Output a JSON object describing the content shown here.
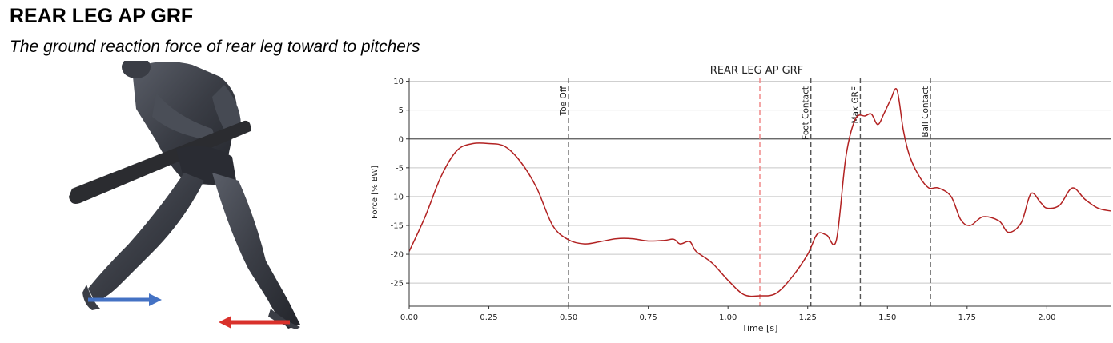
{
  "header": {
    "title": "REAR LEG AP GRF",
    "subtitle": "The ground reaction force of rear leg toward to pitchers"
  },
  "figure": {
    "description_icon": "batter-figure-icon",
    "arrows": [
      {
        "name": "rear-foot-arrow",
        "color": "#4472c4",
        "direction": "right"
      },
      {
        "name": "front-foot-arrow",
        "color": "#d9312b",
        "direction": "left"
      }
    ]
  },
  "chart_data": {
    "type": "line",
    "title": "REAR LEG AP GRF",
    "xlabel": "Time [s]",
    "ylabel": "Force [% BW]",
    "xlim": [
      0,
      2.2
    ],
    "ylim": [
      -29,
      10.5
    ],
    "xticks": [
      "0.00",
      "0.25",
      "0.50",
      "0.75",
      "1.00",
      "1.25",
      "1.50",
      "1.75",
      "2.00"
    ],
    "xtick_values": [
      0,
      0.25,
      0.5,
      0.75,
      1.0,
      1.25,
      1.5,
      1.75,
      2.0
    ],
    "yticks": [
      "10",
      "5",
      "0",
      "-5",
      "-10",
      "-15",
      "-20",
      "-25"
    ],
    "ytick_values": [
      10,
      5,
      0,
      -5,
      -10,
      -15,
      -20,
      -25
    ],
    "grid": "horizontal",
    "line_color": "#b22222",
    "events": [
      {
        "label": "Toe Off",
        "x": 0.5,
        "color": "#555555"
      },
      {
        "label": "",
        "x": 1.1,
        "color": "#f08080"
      },
      {
        "label": "Foot Contact",
        "x": 1.26,
        "color": "#555555"
      },
      {
        "label": "Max GRF",
        "x": 1.415,
        "color": "#555555"
      },
      {
        "label": "Ball Contact",
        "x": 1.635,
        "color": "#555555"
      }
    ],
    "x": [
      0,
      0.05,
      0.1,
      0.15,
      0.2,
      0.25,
      0.3,
      0.35,
      0.4,
      0.45,
      0.5,
      0.55,
      0.6,
      0.65,
      0.7,
      0.75,
      0.8,
      0.83,
      0.85,
      0.88,
      0.9,
      0.95,
      1.0,
      1.05,
      1.1,
      1.15,
      1.2,
      1.25,
      1.28,
      1.31,
      1.34,
      1.37,
      1.4,
      1.43,
      1.45,
      1.47,
      1.49,
      1.51,
      1.53,
      1.55,
      1.57,
      1.6,
      1.63,
      1.66,
      1.7,
      1.73,
      1.76,
      1.8,
      1.85,
      1.88,
      1.92,
      1.95,
      1.98,
      2.0,
      2.04,
      2.08,
      2.12,
      2.16,
      2.2
    ],
    "y": [
      -19.5,
      -13.5,
      -6.5,
      -2.0,
      -0.8,
      -0.8,
      -1.3,
      -4.0,
      -8.5,
      -15.0,
      -17.5,
      -18.2,
      -17.8,
      -17.3,
      -17.3,
      -17.7,
      -17.6,
      -17.4,
      -18.2,
      -17.8,
      -19.5,
      -21.5,
      -24.5,
      -27.0,
      -27.2,
      -26.8,
      -24.0,
      -20.0,
      -16.5,
      -16.7,
      -17.5,
      -3.0,
      3.5,
      4.0,
      4.3,
      2.5,
      4.5,
      6.8,
      8.5,
      1.5,
      -3.0,
      -6.5,
      -8.5,
      -8.5,
      -10.0,
      -14.0,
      -15.0,
      -13.5,
      -14.2,
      -16.2,
      -14.5,
      -9.5,
      -11.0,
      -12.0,
      -11.5,
      -8.5,
      -10.5,
      -12.0,
      -12.5
    ]
  }
}
